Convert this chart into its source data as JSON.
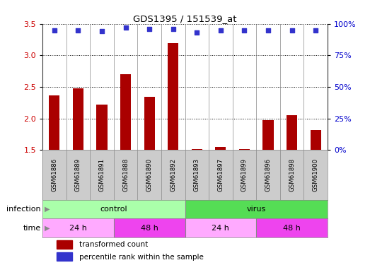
{
  "title": "GDS1395 / 151539_at",
  "samples": [
    "GSM61886",
    "GSM61889",
    "GSM61891",
    "GSM61888",
    "GSM61890",
    "GSM61892",
    "GSM61893",
    "GSM61897",
    "GSM61899",
    "GSM61896",
    "GSM61898",
    "GSM61900"
  ],
  "transformed_count": [
    2.37,
    2.48,
    2.22,
    2.7,
    2.34,
    3.19,
    1.51,
    1.55,
    1.51,
    1.97,
    2.05,
    1.82
  ],
  "percentile_rank": [
    95,
    95,
    94,
    97,
    96,
    96,
    93,
    95,
    95,
    95,
    95,
    95
  ],
  "ylim_left": [
    1.5,
    3.5
  ],
  "ylim_right": [
    0,
    100
  ],
  "yticks_left": [
    1.5,
    2.0,
    2.5,
    3.0,
    3.5
  ],
  "yticks_right": [
    0,
    25,
    50,
    75,
    100
  ],
  "bar_color": "#aa0000",
  "dot_color": "#3333cc",
  "grid_color": "#000000",
  "infection_groups": [
    {
      "label": "control",
      "start": 0,
      "end": 6,
      "color": "#aaffaa"
    },
    {
      "label": "virus",
      "start": 6,
      "end": 12,
      "color": "#55dd55"
    }
  ],
  "time_groups": [
    {
      "label": "24 h",
      "start": 0,
      "end": 3,
      "color": "#ffaaff"
    },
    {
      "label": "48 h",
      "start": 3,
      "end": 6,
      "color": "#ee44ee"
    },
    {
      "label": "24 h",
      "start": 6,
      "end": 9,
      "color": "#ffaaff"
    },
    {
      "label": "48 h",
      "start": 9,
      "end": 12,
      "color": "#ee44ee"
    }
  ],
  "legend_red_label": "transformed count",
  "legend_blue_label": "percentile rank within the sample",
  "tick_color_left": "#cc0000",
  "tick_color_right": "#0000cc",
  "bg_color": "#ffffff",
  "sample_bg_color": "#cccccc",
  "border_color": "#888888",
  "infection_label": "infection",
  "time_label": "time"
}
